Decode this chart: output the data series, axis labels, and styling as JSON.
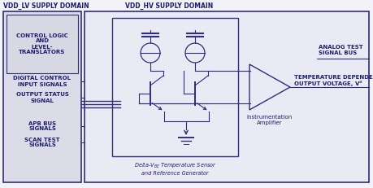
{
  "bg_color": "#f2f2f8",
  "box_color": "#2e2e7a",
  "lv_bg": "#dcdce8",
  "hv_bg": "#eaeaf4",
  "sensor_bg": "#eaeaf4",
  "lv_label": "VDD_LV SUPPLY DOMAIN",
  "hv_label": "VDD_HV SUPPLY DOMAIN",
  "ctrl_text": "CONTROL LOGIC\nAND\nLEVEL-\nTRANSLATORS",
  "left_labels": [
    "DIGITAL CONTROL\nINPUT SIGNALS",
    "OUTPUT STATUS\nSIGNAL",
    "APB BUS\nSIGNALS",
    "SCAN TEST\nSIGNALS"
  ],
  "sensor_label": "Delta-VBE Temperature Sensor\nand Reference Generator",
  "analog_test_label": "ANALOG TEST\nSIGNAL BUS",
  "temp_label": "TEMPERATURE DEPENDENT\nOUTPUT VOLTAGE, Vⁱᴵ",
  "amp_label": "Instrumentation\nAmplifier",
  "line_color": "#2e2e7a",
  "text_color": "#1e1e6e",
  "font_size": 5.0,
  "title_font_size": 5.5
}
